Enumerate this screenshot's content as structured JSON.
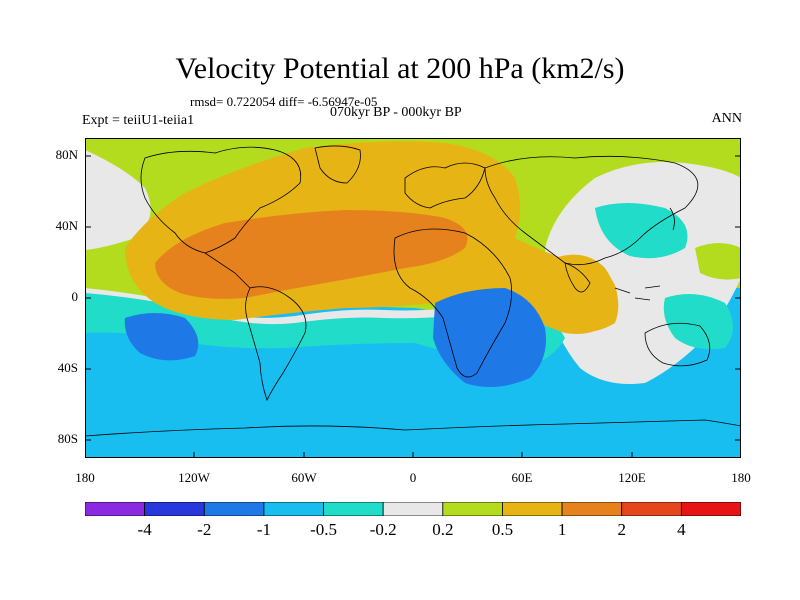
{
  "title": "Velocity Potential at 200 hPa (km2/s)",
  "stats_line": "rmsd= 0.722054 diff= -6.56947e-05",
  "experiment": "Expt = teiiU1-teiia1",
  "period": "070kyr BP - 000kyr BP",
  "season": "ANN",
  "lat_labels": [
    "80N",
    "40N",
    "0",
    "40S",
    "80S"
  ],
  "lon_labels": [
    "180",
    "120W",
    "60W",
    "0",
    "60E",
    "120E",
    "180"
  ],
  "colorbar": {
    "labels": [
      "-4",
      "-2",
      "-1",
      "-0.5",
      "-0.2",
      "0.2",
      "0.5",
      "1",
      "2",
      "4"
    ],
    "colors": [
      "#8a2be2",
      "#2838dc",
      "#1e78e6",
      "#18bef0",
      "#20dcc8",
      "#e8e8e8",
      "#b4dc1e",
      "#e6b414",
      "#e6821e",
      "#e6461e",
      "#e61414"
    ]
  },
  "colors": {
    "ocean_neutral": "#e8e8e8",
    "green": "#b4dc1e",
    "yellow": "#e6b414",
    "orange": "#e6821e",
    "teal": "#20dcc8",
    "light_blue": "#18bef0",
    "blue": "#1e78e6",
    "coastline": "#000000"
  }
}
